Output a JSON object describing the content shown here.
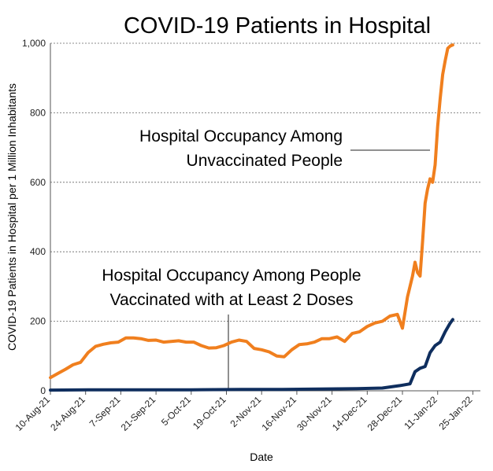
{
  "chart_data": {
    "type": "line",
    "title": "COVID-19 Patients in Hospital",
    "xlabel": "Date",
    "ylabel": "COVID-19 Patients in Hospital per 1 Million Inhabitants",
    "ylim": [
      0,
      1000
    ],
    "yticks": [
      "0",
      "200",
      "400",
      "600",
      "800",
      "1,000"
    ],
    "xlim": [
      "2021-08-10",
      "2022-01-28"
    ],
    "x_tick_labels": [
      "10-Aug-21",
      "24-Aug-21",
      "7-Sep-21",
      "21-Sep-21",
      "5-Oct-21",
      "19-Oct-21",
      "2-Nov-21",
      "16-Nov-21",
      "30-Nov-21",
      "14-Dec-21",
      "28-Dec-21",
      "11-Jan-22",
      "25-Jan-22"
    ],
    "grid": "horizontal dashed",
    "series": [
      {
        "key": "unvaccinated",
        "color": "#F07F1E",
        "x": [
          "2021-08-10",
          "2021-08-13",
          "2021-08-16",
          "2021-08-19",
          "2021-08-22",
          "2021-08-25",
          "2021-08-28",
          "2021-08-31",
          "2021-09-03",
          "2021-09-06",
          "2021-09-09",
          "2021-09-12",
          "2021-09-15",
          "2021-09-18",
          "2021-09-21",
          "2021-09-24",
          "2021-09-27",
          "2021-09-30",
          "2021-10-03",
          "2021-10-06",
          "2021-10-09",
          "2021-10-12",
          "2021-10-15",
          "2021-10-18",
          "2021-10-21",
          "2021-10-24",
          "2021-10-27",
          "2021-10-30",
          "2021-11-02",
          "2021-11-05",
          "2021-11-08",
          "2021-11-11",
          "2021-11-14",
          "2021-11-17",
          "2021-11-20",
          "2021-11-23",
          "2021-11-26",
          "2021-11-29",
          "2021-12-02",
          "2021-12-05",
          "2021-12-08",
          "2021-12-11",
          "2021-12-14",
          "2021-12-17",
          "2021-12-20",
          "2021-12-23",
          "2021-12-26",
          "2021-12-28",
          "2021-12-30",
          "2022-01-01",
          "2022-01-02",
          "2022-01-03",
          "2022-01-04",
          "2022-01-05",
          "2022-01-06",
          "2022-01-07",
          "2022-01-08",
          "2022-01-09",
          "2022-01-10",
          "2022-01-11",
          "2022-01-12",
          "2022-01-13",
          "2022-01-14",
          "2022-01-15",
          "2022-01-16",
          "2022-01-17"
        ],
        "y": [
          38,
          50,
          62,
          75,
          82,
          110,
          128,
          134,
          138,
          140,
          152,
          152,
          150,
          145,
          146,
          140,
          142,
          144,
          140,
          140,
          130,
          123,
          124,
          130,
          140,
          146,
          142,
          122,
          118,
          112,
          100,
          98,
          118,
          133,
          135,
          140,
          150,
          150,
          155,
          142,
          165,
          170,
          185,
          195,
          200,
          215,
          220,
          180,
          270,
          330,
          370,
          340,
          330,
          430,
          540,
          580,
          610,
          600,
          650,
          760,
          840,
          910,
          950,
          985,
          992,
          995
        ]
      },
      {
        "key": "vaccinated",
        "color": "#0F2E5E",
        "x": [
          "2021-08-10",
          "2021-08-25",
          "2021-09-15",
          "2021-10-05",
          "2021-10-25",
          "2021-11-10",
          "2021-11-25",
          "2021-12-10",
          "2021-12-20",
          "2021-12-27",
          "2021-12-31",
          "2022-01-02",
          "2022-01-04",
          "2022-01-06",
          "2022-01-08",
          "2022-01-10",
          "2022-01-12",
          "2022-01-14",
          "2022-01-16",
          "2022-01-17"
        ],
        "y": [
          2,
          3,
          3,
          3,
          4,
          4,
          5,
          6,
          8,
          15,
          20,
          55,
          65,
          70,
          110,
          130,
          140,
          170,
          195,
          205
        ]
      }
    ],
    "annotations": [
      {
        "lines": [
          "Hospital Occupancy Among",
          "Unvaccinated People"
        ]
      },
      {
        "lines": [
          "Hospital Occupancy  Among People",
          "Vaccinated with at Least 2 Doses"
        ]
      }
    ]
  }
}
